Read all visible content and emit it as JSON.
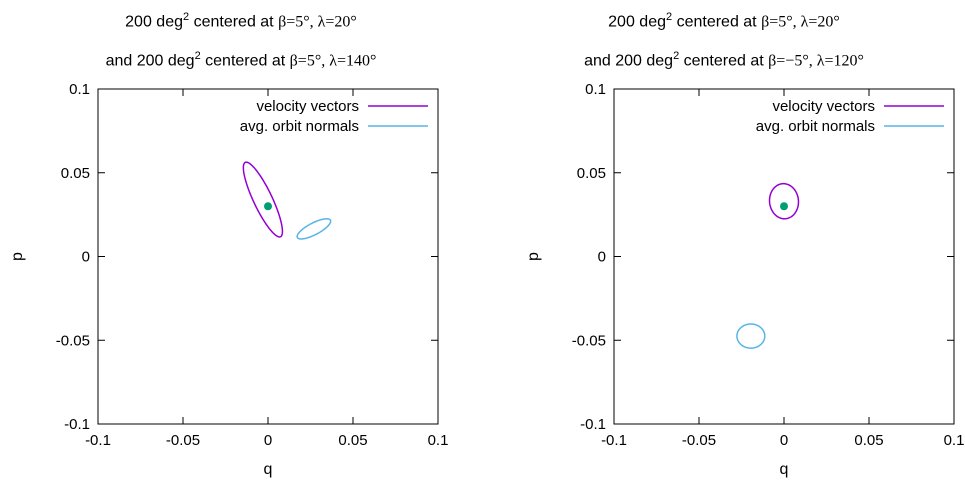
{
  "chart_data": [
    {
      "type": "scatter",
      "title_line1": {
        "lead": "200 deg",
        "sup": "2",
        "tail": " centered at ",
        "math": "β=5°, λ=20°"
      },
      "title_line2": {
        "lead": "and 200 deg",
        "sup": "2",
        "tail": " centered at ",
        "math": "β=5°, λ=140°"
      },
      "xlabel": "q",
      "ylabel": "p",
      "xlim": [
        -0.1,
        0.1
      ],
      "ylim": [
        -0.1,
        0.1
      ],
      "xticks": [
        -0.1,
        -0.05,
        0,
        0.05,
        0.1
      ],
      "yticks": [
        -0.1,
        -0.05,
        0,
        0.05,
        0.1
      ],
      "xtick_labels": [
        "-0.1",
        "-0.05",
        "0",
        "0.05",
        "0.1"
      ],
      "ytick_labels": [
        "-0.1",
        "-0.05",
        "0",
        "0.05",
        "0.1"
      ],
      "grid": false,
      "legend_position": "top-right",
      "point": {
        "x": 0.0,
        "y": 0.03,
        "color": "#009e73"
      },
      "series": [
        {
          "name": "velocity vectors",
          "color": "#9400d3",
          "shape": "ellipse",
          "center": [
            -0.003,
            0.034
          ],
          "semi_major": 0.0245,
          "semi_minor": 0.0055,
          "angle_deg": 115
        },
        {
          "name": "avg. orbit normals",
          "color": "#56b4e9",
          "shape": "ellipse",
          "center": [
            0.027,
            0.0165
          ],
          "semi_major": 0.011,
          "semi_minor": 0.0035,
          "angle_deg": 28
        }
      ]
    },
    {
      "type": "scatter",
      "title_line1": {
        "lead": "200 deg",
        "sup": "2",
        "tail": " centered at ",
        "math": "β=5°, λ=20°"
      },
      "title_line2": {
        "lead": "and 200 deg",
        "sup": "2",
        "tail": " centered at ",
        "math": "β=−5°, λ=120°"
      },
      "xlabel": "q",
      "ylabel": "p",
      "xlim": [
        -0.1,
        0.1
      ],
      "ylim": [
        -0.1,
        0.1
      ],
      "xticks": [
        -0.1,
        -0.05,
        0,
        0.05,
        0.1
      ],
      "yticks": [
        -0.1,
        -0.05,
        0,
        0.05,
        0.1
      ],
      "xtick_labels": [
        "-0.1",
        "-0.05",
        "0",
        "0.05",
        "0.1"
      ],
      "ytick_labels": [
        "-0.1",
        "-0.05",
        "0",
        "0.05",
        "0.1"
      ],
      "grid": false,
      "legend_position": "top-right",
      "point": {
        "x": 0.0,
        "y": 0.03,
        "color": "#009e73"
      },
      "series": [
        {
          "name": "velocity vectors",
          "color": "#9400d3",
          "shape": "ellipse",
          "center": [
            0.0,
            0.033
          ],
          "semi_major": 0.0105,
          "semi_minor": 0.0085,
          "angle_deg": 95
        },
        {
          "name": "avg. orbit normals",
          "color": "#56b4e9",
          "shape": "ellipse",
          "center": [
            -0.0195,
            -0.0475
          ],
          "semi_major": 0.0082,
          "semi_minor": 0.0072,
          "angle_deg": 0
        }
      ]
    }
  ]
}
